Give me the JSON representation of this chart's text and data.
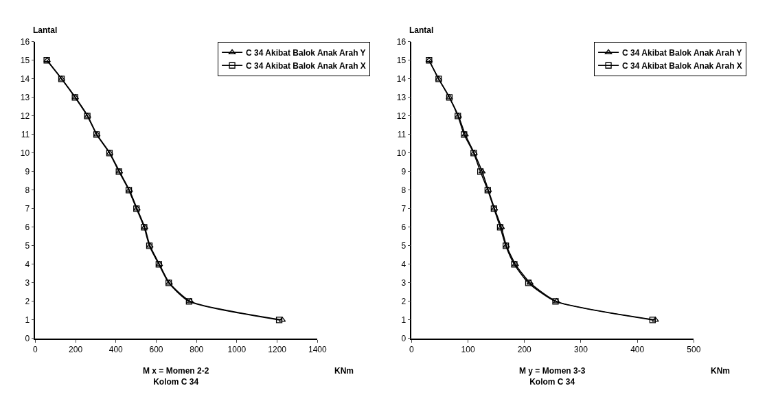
{
  "chart_data": [
    {
      "type": "line",
      "ylabel": "Lantal",
      "xlabel": "M x = Momen 2-2\nKolom C 34",
      "annotations": [
        "KNm"
      ],
      "xlim": [
        0,
        1400
      ],
      "xticks": [
        0,
        200,
        400,
        600,
        800,
        1000,
        1200,
        1400
      ],
      "ylim": [
        0,
        16
      ],
      "yticks": [
        0,
        1,
        2,
        3,
        4,
        5,
        6,
        7,
        8,
        9,
        10,
        11,
        12,
        13,
        14,
        15,
        16
      ],
      "legend": "top right",
      "series": [
        {
          "name": "C 34 Akibat Balok Anak Arah Y",
          "color": "#000000",
          "marker": "triangle",
          "x": [
            1225,
            770,
            665,
            616,
            569,
            543,
            505,
            467,
            418,
            370,
            306,
            260,
            199,
            131,
            59
          ],
          "values": [
            1,
            2,
            3,
            4,
            5,
            6,
            7,
            8,
            9,
            10,
            11,
            12,
            13,
            14,
            15
          ]
        },
        {
          "name": "C 34 Akibat Balok Anak Arah X",
          "color": "#000000",
          "marker": "square",
          "x": [
            1210,
            763,
            662,
            613,
            566,
            540,
            502,
            464,
            415,
            368,
            304,
            258,
            197,
            130,
            57
          ],
          "values": [
            1,
            2,
            3,
            4,
            5,
            6,
            7,
            8,
            9,
            10,
            11,
            12,
            13,
            14,
            15
          ]
        }
      ]
    },
    {
      "type": "line",
      "ylabel": "Lantal",
      "xlabel": "M y = Momen 3-3\nKolom C 34",
      "annotations": [
        "KNm"
      ],
      "xlim": [
        0,
        500
      ],
      "xticks": [
        0,
        100,
        200,
        300,
        400,
        500
      ],
      "ylim": [
        0,
        16
      ],
      "yticks": [
        0,
        1,
        2,
        3,
        4,
        5,
        6,
        7,
        8,
        9,
        10,
        11,
        12,
        13,
        14,
        15,
        16
      ],
      "legend": "top right",
      "series": [
        {
          "name": "C 34 Akibat Balok Anak Arah Y",
          "color": "#000000",
          "marker": "triangle",
          "x": [
            432,
            257,
            210,
            184,
            168,
            159,
            147,
            136,
            125,
            111,
            95,
            83,
            67,
            48,
            31
          ],
          "values": [
            1,
            2,
            3,
            4,
            5,
            6,
            7,
            8,
            9,
            10,
            11,
            12,
            13,
            14,
            15
          ]
        },
        {
          "name": "C 34 Akibat Balok Anak Arah X",
          "color": "#000000",
          "marker": "square",
          "x": [
            427,
            255,
            207,
            182,
            167,
            157,
            146,
            135,
            122,
            110,
            93,
            82,
            67,
            48,
            31
          ],
          "values": [
            1,
            2,
            3,
            4,
            5,
            6,
            7,
            8,
            9,
            10,
            11,
            12,
            13,
            14,
            15
          ]
        }
      ]
    }
  ]
}
